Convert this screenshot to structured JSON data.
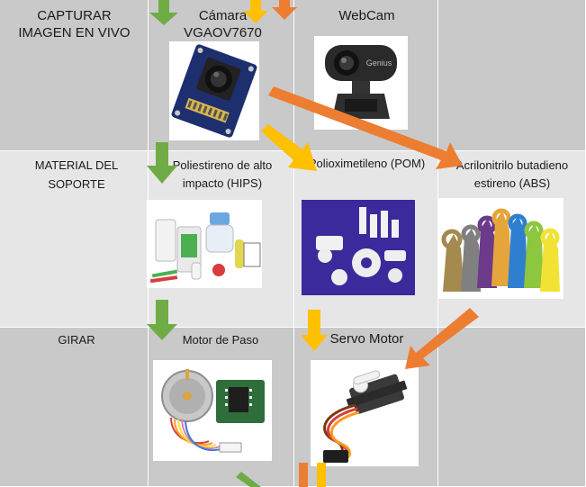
{
  "rows": [
    {
      "label": "CAPTURAR\nIMAGEN EN VIVO"
    },
    {
      "label": "MATERIAL DEL\nSOPORTE"
    },
    {
      "label": "GIRAR"
    }
  ],
  "options": {
    "camera1": "Cámara\nVGAOV7670",
    "camera2": "WebCam",
    "material1": "Poliestireno de alto\nimpacto (HIPS)",
    "material2": "Polioximetileno (POM)",
    "material3": "Acrilonitrilo butadieno\nestireno (ABS)",
    "motor1": "Motor de Paso",
    "motor2": "Servo Motor"
  },
  "webcam_brand": "Genius",
  "colors": {
    "green": "#6fac46",
    "orange": "#ed7d31",
    "yellow": "#ffc000",
    "row_dark": "#c9c9c9",
    "row_light": "#e6e6e6"
  }
}
